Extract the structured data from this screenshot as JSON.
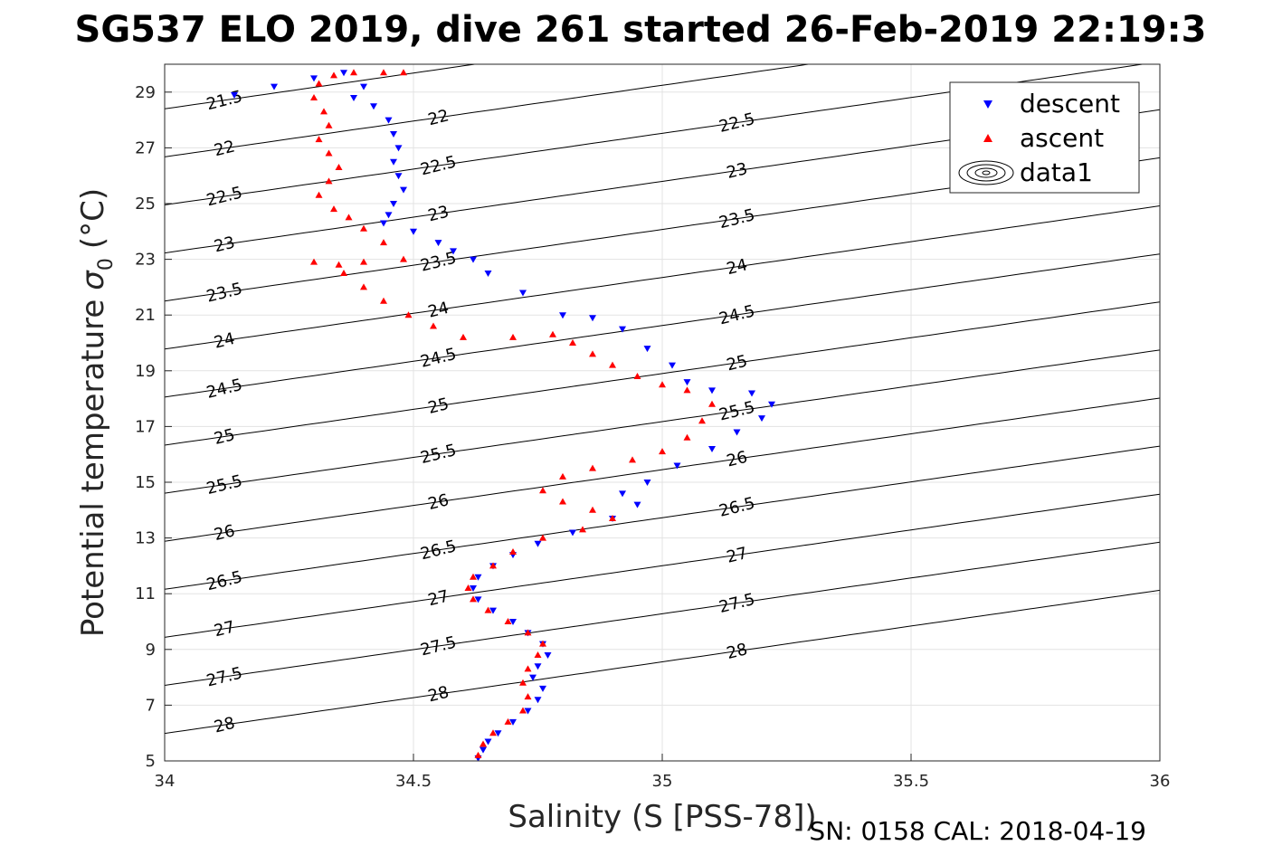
{
  "title": "SG537 ELO 2019, dive 261 started 26-Feb-2019 22:19:3",
  "footer": "SN: 0158  CAL: 2018-04-19",
  "colors": {
    "descent": "#0000ff",
    "ascent": "#ff0000",
    "contour": "#000000",
    "grid": "#e3e3e3"
  },
  "chart_data": {
    "type": "scatter",
    "xlabel": "Salinity (S [PSS-78])",
    "ylabel": "Potential temperature",
    "ylabel_symbol": "σ",
    "ylabel_sub": "0",
    "ylabel_unit": "(°C)",
    "xlim": [
      34,
      36
    ],
    "ylim": [
      5,
      30
    ],
    "xticks": [
      34,
      34.5,
      35,
      35.5,
      36
    ],
    "xtick_labels": [
      "34",
      "34.5",
      "35",
      "35.5",
      "36"
    ],
    "yticks": [
      5,
      7,
      9,
      11,
      13,
      15,
      17,
      19,
      21,
      23,
      25,
      27,
      29
    ],
    "ytick_labels": [
      "5",
      "7",
      "9",
      "11",
      "13",
      "15",
      "17",
      "19",
      "21",
      "23",
      "25",
      "27",
      "29"
    ],
    "grid": true,
    "legend": {
      "placement": "top-right",
      "entries": [
        {
          "name": "descent",
          "marker": "triangle-down",
          "color": "#0000ff"
        },
        {
          "name": "ascent",
          "marker": "triangle-up",
          "color": "#ff0000"
        },
        {
          "name": "data1",
          "marker": "contour-icon",
          "color": "#000000"
        }
      ]
    },
    "isopycnals": {
      "levels": [
        21.5,
        22,
        22.5,
        23,
        23.5,
        24,
        24.5,
        25,
        25.5,
        26,
        26.5,
        27,
        27.5,
        28
      ],
      "level_labels": [
        "21.5",
        "22",
        "22.5",
        "23",
        "23.5",
        "24",
        "24.5",
        "25",
        "25.5",
        "26",
        "26.5",
        "27",
        "27.5",
        "28"
      ]
    },
    "series": [
      {
        "name": "descent",
        "points": [
          [
            34.14,
            28.9
          ],
          [
            34.22,
            29.2
          ],
          [
            34.3,
            29.5
          ],
          [
            34.36,
            29.7
          ],
          [
            34.4,
            29.2
          ],
          [
            34.38,
            28.8
          ],
          [
            34.42,
            28.5
          ],
          [
            34.45,
            28.0
          ],
          [
            34.46,
            27.5
          ],
          [
            34.47,
            27.0
          ],
          [
            34.46,
            26.5
          ],
          [
            34.47,
            26.0
          ],
          [
            34.48,
            25.5
          ],
          [
            34.46,
            25.0
          ],
          [
            34.45,
            24.6
          ],
          [
            34.44,
            24.3
          ],
          [
            34.5,
            24.0
          ],
          [
            34.55,
            23.6
          ],
          [
            34.58,
            23.3
          ],
          [
            34.62,
            23.0
          ],
          [
            34.65,
            22.5
          ],
          [
            34.72,
            21.8
          ],
          [
            34.8,
            21.0
          ],
          [
            34.86,
            20.9
          ],
          [
            34.92,
            20.5
          ],
          [
            34.97,
            19.8
          ],
          [
            35.02,
            19.2
          ],
          [
            35.05,
            18.6
          ],
          [
            35.1,
            18.3
          ],
          [
            35.18,
            18.2
          ],
          [
            35.22,
            17.8
          ],
          [
            35.2,
            17.3
          ],
          [
            35.15,
            16.8
          ],
          [
            35.1,
            16.2
          ],
          [
            35.03,
            15.6
          ],
          [
            34.97,
            15.0
          ],
          [
            34.92,
            14.6
          ],
          [
            34.95,
            14.2
          ],
          [
            34.9,
            13.7
          ],
          [
            34.82,
            13.2
          ],
          [
            34.75,
            12.8
          ],
          [
            34.7,
            12.4
          ],
          [
            34.66,
            12.0
          ],
          [
            34.63,
            11.6
          ],
          [
            34.62,
            11.2
          ],
          [
            34.63,
            10.8
          ],
          [
            34.66,
            10.4
          ],
          [
            34.7,
            10.0
          ],
          [
            34.73,
            9.6
          ],
          [
            34.76,
            9.2
          ],
          [
            34.77,
            8.8
          ],
          [
            34.75,
            8.4
          ],
          [
            34.74,
            8.0
          ],
          [
            34.76,
            7.6
          ],
          [
            34.75,
            7.2
          ],
          [
            34.73,
            6.8
          ],
          [
            34.7,
            6.4
          ],
          [
            34.67,
            6.0
          ],
          [
            34.65,
            5.7
          ],
          [
            34.64,
            5.4
          ],
          [
            34.63,
            5.1
          ]
        ]
      },
      {
        "name": "ascent",
        "points": [
          [
            34.48,
            29.7
          ],
          [
            34.44,
            29.7
          ],
          [
            34.38,
            29.7
          ],
          [
            34.34,
            29.6
          ],
          [
            34.31,
            29.3
          ],
          [
            34.3,
            28.8
          ],
          [
            34.32,
            28.3
          ],
          [
            34.33,
            27.8
          ],
          [
            34.31,
            27.3
          ],
          [
            34.33,
            26.8
          ],
          [
            34.35,
            26.3
          ],
          [
            34.33,
            25.8
          ],
          [
            34.31,
            25.3
          ],
          [
            34.34,
            24.8
          ],
          [
            34.37,
            24.5
          ],
          [
            34.4,
            24.1
          ],
          [
            34.44,
            23.6
          ],
          [
            34.48,
            23.0
          ],
          [
            34.4,
            22.9
          ],
          [
            34.35,
            22.8
          ],
          [
            34.3,
            22.9
          ],
          [
            34.36,
            22.5
          ],
          [
            34.4,
            22.0
          ],
          [
            34.44,
            21.5
          ],
          [
            34.49,
            21.0
          ],
          [
            34.54,
            20.6
          ],
          [
            34.6,
            20.2
          ],
          [
            34.7,
            20.2
          ],
          [
            34.78,
            20.3
          ],
          [
            34.82,
            20.0
          ],
          [
            34.86,
            19.6
          ],
          [
            34.9,
            19.2
          ],
          [
            34.95,
            18.8
          ],
          [
            35.0,
            18.5
          ],
          [
            35.05,
            18.3
          ],
          [
            35.1,
            17.8
          ],
          [
            35.08,
            17.2
          ],
          [
            35.05,
            16.6
          ],
          [
            35.0,
            16.1
          ],
          [
            34.94,
            15.8
          ],
          [
            34.86,
            15.5
          ],
          [
            34.8,
            15.2
          ],
          [
            34.76,
            14.7
          ],
          [
            34.8,
            14.3
          ],
          [
            34.86,
            14.0
          ],
          [
            34.9,
            13.7
          ],
          [
            34.84,
            13.3
          ],
          [
            34.76,
            13.0
          ],
          [
            34.7,
            12.5
          ],
          [
            34.66,
            12.0
          ],
          [
            34.62,
            11.6
          ],
          [
            34.61,
            11.2
          ],
          [
            34.62,
            10.8
          ],
          [
            34.65,
            10.4
          ],
          [
            34.69,
            10.0
          ],
          [
            34.73,
            9.6
          ],
          [
            34.76,
            9.2
          ],
          [
            34.75,
            8.8
          ],
          [
            34.73,
            8.3
          ],
          [
            34.72,
            7.8
          ],
          [
            34.73,
            7.3
          ],
          [
            34.72,
            6.8
          ],
          [
            34.69,
            6.4
          ],
          [
            34.66,
            6.0
          ],
          [
            34.64,
            5.6
          ],
          [
            34.63,
            5.2
          ]
        ]
      }
    ]
  }
}
